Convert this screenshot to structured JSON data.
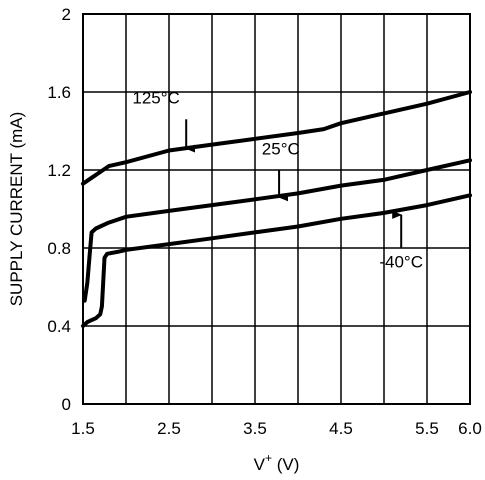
{
  "chart_data": {
    "type": "line",
    "xlabel": "V",
    "xlabel_superscript": "+",
    "xlabel_unit": " (V)",
    "ylabel": "SUPPLY CURRENT (mA)",
    "xlim": [
      1.5,
      6.0
    ],
    "ylim": [
      0,
      2
    ],
    "x_ticks": [
      1.5,
      2.5,
      3.5,
      4.5,
      5.5,
      6.0
    ],
    "x_tick_labels": [
      "1.5",
      "2.5",
      "3.5",
      "4.5",
      "5.5",
      "6.0"
    ],
    "x_grid": [
      1.5,
      2.0,
      2.5,
      3.0,
      3.5,
      4.0,
      4.5,
      5.0,
      5.5,
      6.0
    ],
    "y_ticks": [
      0,
      0.4,
      0.8,
      1.2,
      1.6,
      2
    ],
    "y_tick_labels": [
      "0",
      "0.4",
      "0.8",
      "1.2",
      "1.6",
      "2"
    ],
    "grid": true,
    "series": [
      {
        "name": "125°C",
        "x": [
          1.5,
          1.6,
          1.7,
          1.8,
          2.0,
          2.5,
          3.0,
          3.5,
          4.0,
          4.3,
          4.5,
          5.0,
          5.5,
          6.0
        ],
        "y": [
          1.13,
          1.16,
          1.19,
          1.22,
          1.24,
          1.3,
          1.33,
          1.36,
          1.39,
          1.41,
          1.44,
          1.49,
          1.54,
          1.6
        ]
      },
      {
        "name": "25°C",
        "x": [
          1.52,
          1.55,
          1.58,
          1.6,
          1.65,
          1.7,
          1.8,
          2.0,
          2.5,
          3.0,
          3.5,
          4.0,
          4.5,
          5.0,
          5.5,
          6.0
        ],
        "y": [
          0.53,
          0.62,
          0.78,
          0.88,
          0.9,
          0.91,
          0.93,
          0.96,
          0.99,
          1.02,
          1.05,
          1.08,
          1.12,
          1.15,
          1.2,
          1.25
        ]
      },
      {
        "name": "-40°C",
        "x": [
          1.5,
          1.55,
          1.6,
          1.65,
          1.7,
          1.72,
          1.75,
          1.78,
          1.9,
          2.0,
          2.5,
          3.0,
          3.5,
          4.0,
          4.5,
          5.0,
          5.5,
          6.0
        ],
        "y": [
          0.4,
          0.42,
          0.43,
          0.44,
          0.46,
          0.5,
          0.75,
          0.77,
          0.78,
          0.79,
          0.82,
          0.85,
          0.88,
          0.91,
          0.95,
          0.98,
          1.02,
          1.07
        ]
      }
    ],
    "annotations": [
      {
        "text": "125°C",
        "label_x": 2.35,
        "label_y": 1.54,
        "arrow_x": 2.7,
        "arrow_from": 1.46,
        "arrow_to": 1.31
      },
      {
        "text": "25°C",
        "label_x": 3.8,
        "label_y": 1.28,
        "arrow_x": 3.78,
        "arrow_from": 1.2,
        "arrow_to": 1.06
      },
      {
        "text": "-40°C",
        "label_x": 5.2,
        "label_y": 0.7,
        "arrow_x": 5.2,
        "arrow_from": 0.8,
        "arrow_to": 0.97
      }
    ]
  }
}
